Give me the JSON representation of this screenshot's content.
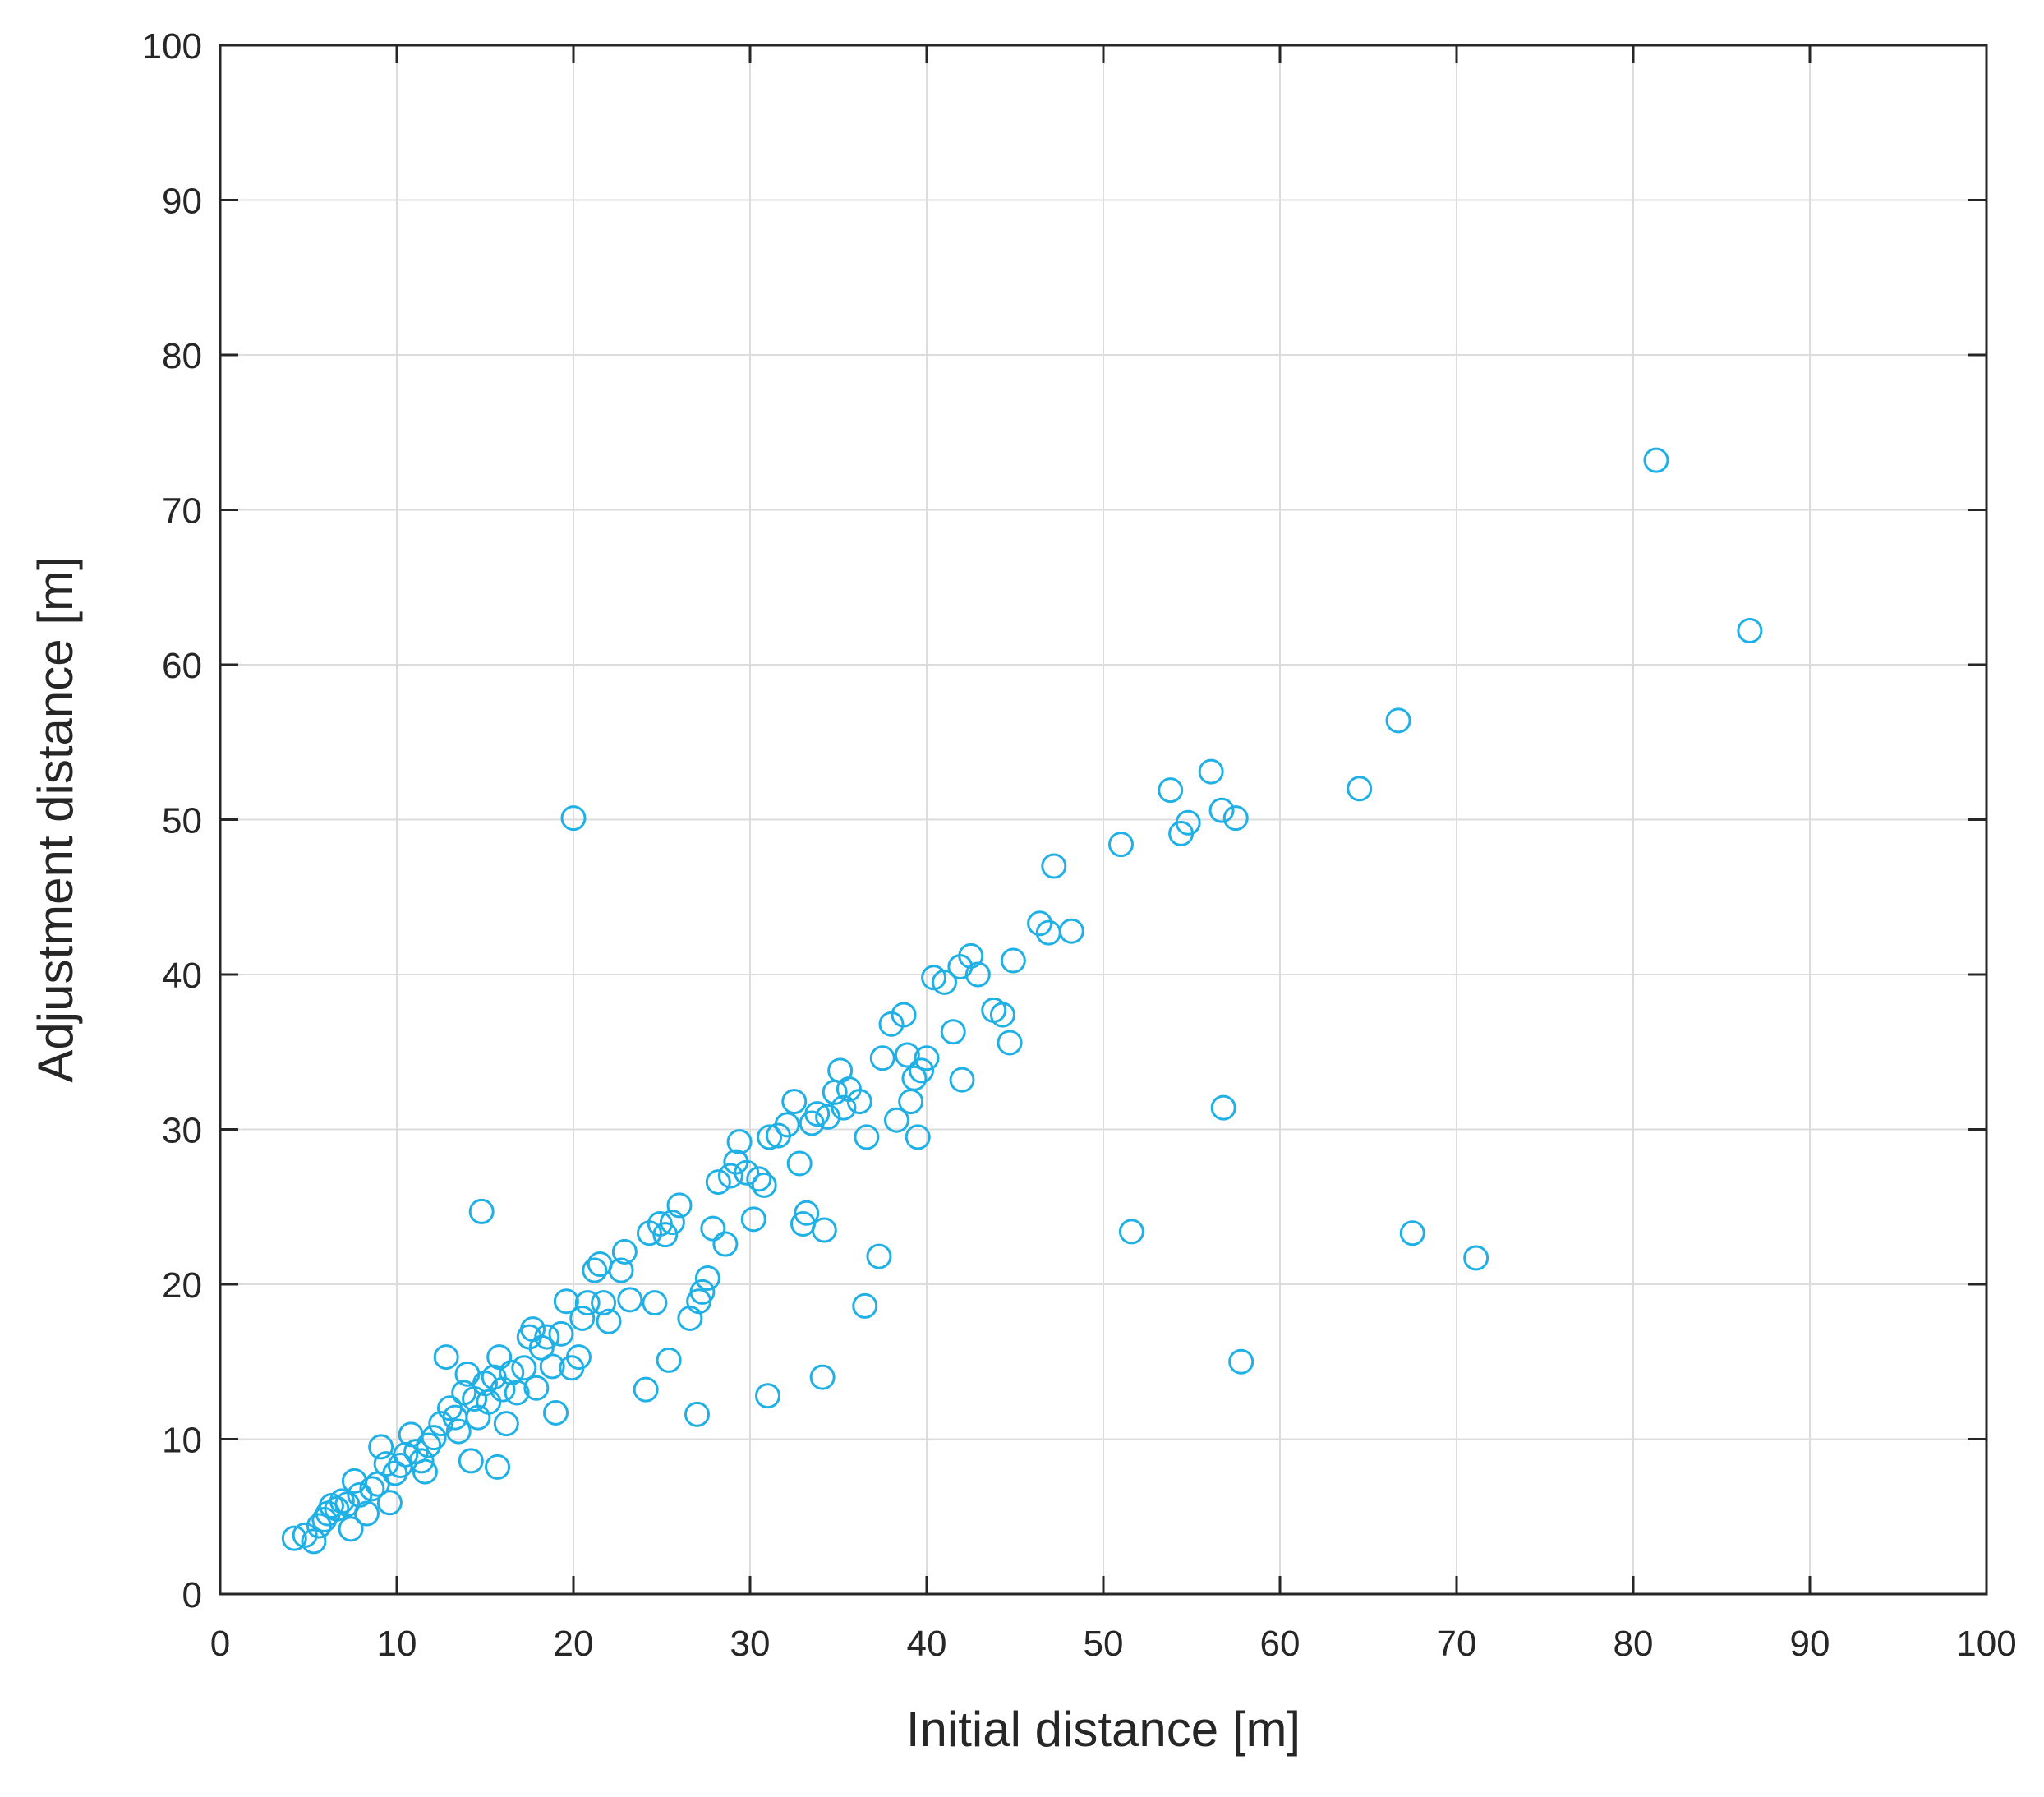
{
  "chart_data": {
    "type": "scatter",
    "title": "",
    "xlabel": "Initial  distance [m]",
    "ylabel": "Adjustment distance [m]",
    "xlim": [
      0,
      100
    ],
    "ylim": [
      0,
      100
    ],
    "xticks": [
      0,
      10,
      20,
      30,
      40,
      50,
      60,
      70,
      80,
      90,
      100
    ],
    "yticks": [
      0,
      10,
      20,
      30,
      40,
      50,
      60,
      70,
      80,
      90,
      100
    ],
    "xtick_labels": [
      "0",
      "10",
      "20",
      "30",
      "40",
      "50",
      "60",
      "70",
      "80",
      "90",
      "100"
    ],
    "ytick_labels": [
      "0",
      "10",
      "20",
      "30",
      "40",
      "50",
      "60",
      "70",
      "80",
      "90",
      "100"
    ],
    "grid": true,
    "marker": "open-circle",
    "colors": {
      "marker": "#1fb0e6",
      "grid": "#dcdcdc",
      "axis": "#262626"
    },
    "series": [
      {
        "points": [
          [
            4.2,
            3.6
          ],
          [
            4.8,
            3.8
          ],
          [
            5.3,
            3.4
          ],
          [
            5.6,
            4.4
          ],
          [
            5.9,
            4.8
          ],
          [
            6.1,
            5.2
          ],
          [
            6.3,
            5.7
          ],
          [
            6.6,
            5.5
          ],
          [
            6.9,
            6.0
          ],
          [
            7.2,
            5.8
          ],
          [
            7.4,
            4.2
          ],
          [
            7.6,
            7.3
          ],
          [
            7.9,
            6.4
          ],
          [
            8.3,
            5.2
          ],
          [
            8.6,
            6.8
          ],
          [
            8.9,
            7.1
          ],
          [
            9.1,
            9.5
          ],
          [
            9.4,
            8.4
          ],
          [
            9.6,
            5.9
          ],
          [
            9.9,
            7.8
          ],
          [
            10.2,
            8.3
          ],
          [
            10.5,
            9.0
          ],
          [
            10.8,
            10.3
          ],
          [
            11.1,
            9.2
          ],
          [
            11.4,
            8.6
          ],
          [
            11.6,
            7.9
          ],
          [
            11.8,
            9.6
          ],
          [
            12.1,
            10.1
          ],
          [
            12.5,
            11.0
          ],
          [
            12.8,
            15.3
          ],
          [
            13.0,
            12.0
          ],
          [
            13.3,
            11.4
          ],
          [
            13.5,
            10.5
          ],
          [
            13.8,
            13.0
          ],
          [
            14.0,
            14.2
          ],
          [
            14.2,
            8.6
          ],
          [
            14.4,
            12.6
          ],
          [
            14.6,
            11.4
          ],
          [
            14.8,
            24.7
          ],
          [
            15.0,
            13.6
          ],
          [
            15.2,
            12.4
          ],
          [
            15.5,
            14.0
          ],
          [
            15.8,
            15.3
          ],
          [
            15.7,
            8.2
          ],
          [
            16.0,
            13.2
          ],
          [
            16.2,
            11.0
          ],
          [
            16.5,
            14.3
          ],
          [
            16.8,
            13.0
          ],
          [
            17.2,
            14.6
          ],
          [
            17.5,
            16.6
          ],
          [
            17.7,
            17.1
          ],
          [
            17.9,
            13.3
          ],
          [
            18.2,
            15.9
          ],
          [
            18.5,
            16.6
          ],
          [
            18.8,
            14.7
          ],
          [
            19.0,
            11.7
          ],
          [
            19.3,
            16.8
          ],
          [
            19.6,
            18.9
          ],
          [
            19.9,
            14.6
          ],
          [
            20.0,
            50.1
          ],
          [
            20.3,
            15.3
          ],
          [
            20.5,
            17.8
          ],
          [
            20.8,
            18.8
          ],
          [
            21.2,
            20.9
          ],
          [
            21.5,
            21.3
          ],
          [
            21.7,
            18.8
          ],
          [
            22.0,
            17.6
          ],
          [
            22.7,
            20.9
          ],
          [
            22.9,
            22.1
          ],
          [
            23.2,
            19.0
          ],
          [
            24.1,
            13.2
          ],
          [
            24.3,
            23.3
          ],
          [
            24.6,
            18.8
          ],
          [
            24.9,
            23.9
          ],
          [
            25.2,
            23.2
          ],
          [
            25.4,
            15.1
          ],
          [
            25.6,
            24.0
          ],
          [
            26.0,
            25.1
          ],
          [
            26.6,
            17.8
          ],
          [
            27.0,
            11.6
          ],
          [
            27.1,
            18.9
          ],
          [
            27.3,
            19.5
          ],
          [
            27.6,
            20.4
          ],
          [
            27.9,
            23.6
          ],
          [
            28.2,
            26.6
          ],
          [
            28.6,
            22.6
          ],
          [
            28.9,
            27.0
          ],
          [
            29.2,
            27.9
          ],
          [
            29.4,
            29.2
          ],
          [
            29.8,
            27.2
          ],
          [
            30.2,
            24.2
          ],
          [
            30.5,
            26.8
          ],
          [
            30.8,
            26.4
          ],
          [
            31.1,
            29.5
          ],
          [
            31.0,
            12.8
          ],
          [
            31.6,
            29.6
          ],
          [
            32.1,
            30.3
          ],
          [
            32.5,
            31.8
          ],
          [
            32.8,
            27.8
          ],
          [
            33.0,
            23.9
          ],
          [
            33.2,
            24.6
          ],
          [
            33.5,
            30.4
          ],
          [
            33.8,
            31.0
          ],
          [
            34.1,
            14.0
          ],
          [
            34.2,
            23.5
          ],
          [
            34.4,
            30.8
          ],
          [
            34.8,
            32.4
          ],
          [
            35.1,
            33.8
          ],
          [
            35.3,
            31.4
          ],
          [
            35.6,
            32.6
          ],
          [
            36.2,
            31.8
          ],
          [
            36.6,
            29.5
          ],
          [
            36.5,
            18.6
          ],
          [
            37.3,
            21.8
          ],
          [
            37.5,
            34.6
          ],
          [
            38.0,
            36.8
          ],
          [
            38.3,
            30.6
          ],
          [
            38.7,
            37.4
          ],
          [
            38.9,
            34.8
          ],
          [
            39.1,
            31.8
          ],
          [
            39.3,
            33.3
          ],
          [
            39.5,
            29.5
          ],
          [
            39.7,
            33.8
          ],
          [
            40.0,
            34.6
          ],
          [
            40.4,
            39.8
          ],
          [
            41.0,
            39.5
          ],
          [
            41.5,
            36.3
          ],
          [
            41.9,
            40.5
          ],
          [
            42.0,
            33.2
          ],
          [
            42.5,
            41.2
          ],
          [
            42.9,
            40.0
          ],
          [
            43.8,
            37.7
          ],
          [
            44.3,
            37.4
          ],
          [
            44.7,
            35.6
          ],
          [
            44.9,
            40.9
          ],
          [
            46.4,
            43.3
          ],
          [
            46.9,
            42.7
          ],
          [
            47.2,
            47.0
          ],
          [
            48.2,
            42.8
          ],
          [
            51.0,
            48.4
          ],
          [
            51.6,
            23.4
          ],
          [
            53.8,
            51.9
          ],
          [
            54.4,
            49.1
          ],
          [
            54.8,
            49.8
          ],
          [
            56.1,
            53.1
          ],
          [
            56.7,
            50.6
          ],
          [
            56.8,
            31.4
          ],
          [
            57.5,
            50.1
          ],
          [
            57.8,
            15.0
          ],
          [
            64.5,
            52.0
          ],
          [
            66.7,
            56.4
          ],
          [
            67.5,
            23.3
          ],
          [
            71.1,
            21.7
          ],
          [
            81.3,
            73.2
          ],
          [
            86.6,
            62.2
          ]
        ]
      }
    ]
  }
}
